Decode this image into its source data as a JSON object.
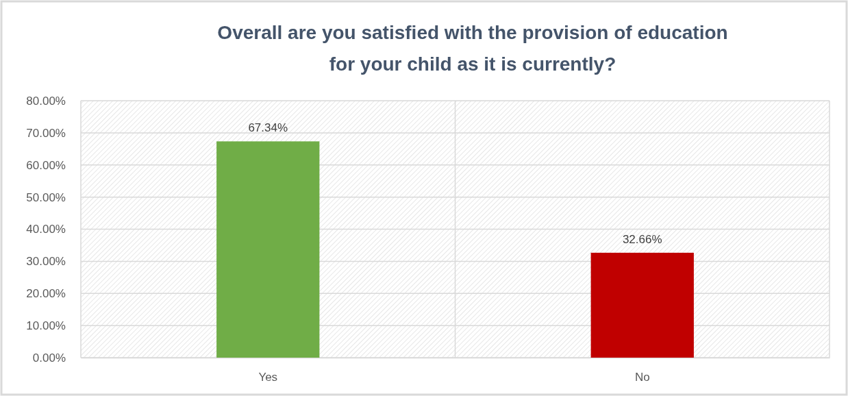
{
  "chart_data": {
    "type": "bar",
    "title": "Overall are you satisfied with the provision of education for your child as it is currently?",
    "categories": [
      "Yes",
      "No"
    ],
    "values": [
      67.34,
      32.66
    ],
    "colors": [
      "#70ad47",
      "#c00000"
    ],
    "value_labels": [
      "67.34%",
      "32.66%"
    ],
    "ylim": [
      0,
      80
    ],
    "yticks": [
      {
        "value": 0,
        "label": "0.00%"
      },
      {
        "value": 10,
        "label": "10.00%"
      },
      {
        "value": 20,
        "label": "20.00%"
      },
      {
        "value": 30,
        "label": "30.00%"
      },
      {
        "value": 40,
        "label": "40.00%"
      },
      {
        "value": 50,
        "label": "50.00%"
      },
      {
        "value": 60,
        "label": "60.00%"
      },
      {
        "value": 70,
        "label": "70.00%"
      },
      {
        "value": 80,
        "label": "80.00%"
      }
    ],
    "grid": true
  }
}
